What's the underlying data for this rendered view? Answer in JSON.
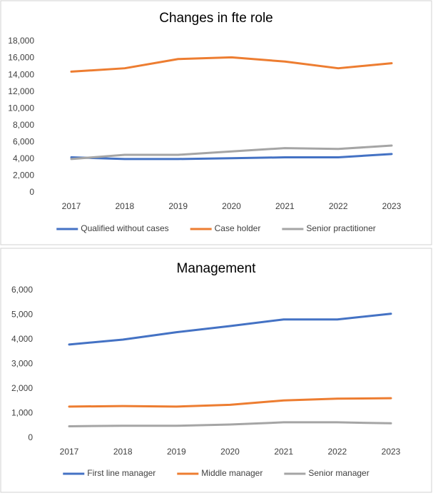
{
  "chart_data": [
    {
      "type": "line",
      "title": "Changes in fte role",
      "categories": [
        "2017",
        "2018",
        "2019",
        "2020",
        "2021",
        "2022",
        "2023"
      ],
      "series": [
        {
          "name": "Qualified without cases",
          "color": "#4472c4",
          "values": [
            4200,
            4000,
            4000,
            4100,
            4200,
            4200,
            4600
          ]
        },
        {
          "name": "Case holder",
          "color": "#ed7d31",
          "values": [
            14400,
            14800,
            15900,
            16100,
            15600,
            14800,
            15400
          ]
        },
        {
          "name": "Senior practitioner",
          "color": "#a5a5a5",
          "values": [
            4000,
            4500,
            4500,
            4900,
            5300,
            5200,
            5600
          ]
        }
      ],
      "ylim": [
        0,
        18000
      ],
      "yticks": [
        0,
        {
          "value": 2000,
          "label": "2,000"
        },
        {
          "value": 4000,
          "label": "4,000"
        },
        {
          "value": 6000,
          "label": "6,000"
        },
        {
          "value": 8000,
          "label": "8,000"
        },
        {
          "value": 10000,
          "label": "10,000"
        },
        {
          "value": 12000,
          "label": "12,000"
        },
        {
          "value": 14000,
          "label": "14,000"
        },
        {
          "value": 16000,
          "label": "16,000"
        },
        {
          "value": 18000,
          "label": "18,000"
        }
      ],
      "grid": false,
      "legend": "bottom"
    },
    {
      "type": "line",
      "title": "Management",
      "categories": [
        "2017",
        "2018",
        "2019",
        "2020",
        "2021",
        "2022",
        "2023"
      ],
      "series": [
        {
          "name": "First line manager",
          "color": "#4472c4",
          "values": [
            3800,
            4000,
            4300,
            4550,
            4820,
            4820,
            5050
          ]
        },
        {
          "name": "Middle manager",
          "color": "#ed7d31",
          "values": [
            1280,
            1300,
            1280,
            1350,
            1530,
            1600,
            1620
          ]
        },
        {
          "name": "Senior manager",
          "color": "#a5a5a5",
          "values": [
            480,
            500,
            500,
            550,
            640,
            640,
            600
          ]
        }
      ],
      "ylim": [
        0,
        6000
      ],
      "yticks": [
        0,
        {
          "value": 1000,
          "label": "1,000"
        },
        {
          "value": 2000,
          "label": "2,000"
        },
        {
          "value": 3000,
          "label": "3,000"
        },
        {
          "value": 4000,
          "label": "4,000"
        },
        {
          "value": 5000,
          "label": "5,000"
        },
        {
          "value": 6000,
          "label": "6,000"
        }
      ],
      "grid": false,
      "legend": "bottom"
    }
  ]
}
